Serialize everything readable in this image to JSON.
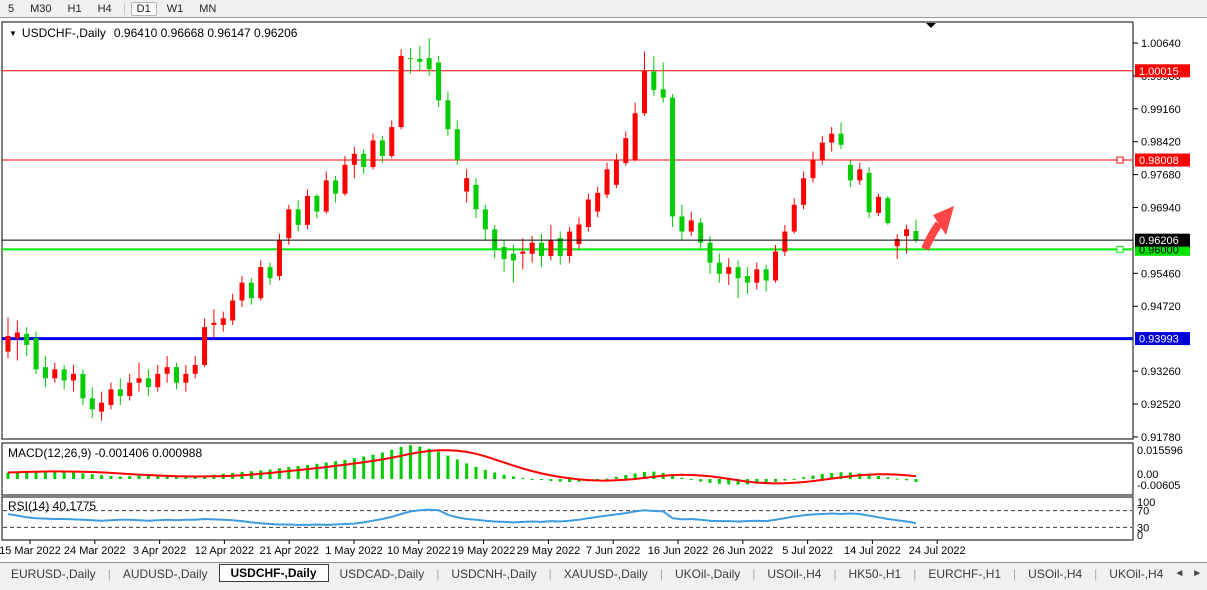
{
  "toolbar": {
    "timeframes": [
      "5",
      "M30",
      "H1",
      "H4",
      "D1",
      "W1",
      "MN"
    ],
    "active_timeframe": "D1"
  },
  "chart": {
    "title": {
      "dropdown_glyph": "▼",
      "symbol": "USDCHF-,Daily",
      "ohlc_values": "0.96410 0.96668 0.96147 0.96206"
    },
    "colors": {
      "bull_candle": "#ff0000",
      "bear_candle": "#00cc00",
      "resistance_line": "#ff0000",
      "support_line": "#00ee00",
      "blue_line": "#0000ee",
      "current_price_line": "#000000",
      "macd_histogram": "#00cc00",
      "macd_signal": "#ff0000",
      "rsi_line": "#3e9bde",
      "arrow_annotation": "#ff4545"
    },
    "price_axis_ticks": [
      1.0064,
      0.999,
      0.9916,
      0.9842,
      0.9768,
      0.9694,
      0.9546,
      0.9472,
      0.9326,
      0.9252,
      0.9178
    ],
    "horizontal_lines": [
      {
        "price": 1.00015,
        "label": "1.00015",
        "color": "#ff0000",
        "width": 1,
        "label_bg": "#ff0000",
        "label_fg": "#ffffff",
        "handle": false
      },
      {
        "price": 0.98008,
        "label": "0.98008",
        "color": "#ff0000",
        "width": 1,
        "label_bg": "#ff0000",
        "label_fg": "#ffffff",
        "handle": true
      },
      {
        "price": 0.96,
        "label": "0.96000",
        "color": "#00ee00",
        "width": 2,
        "label_bg": "#00e400",
        "label_fg": "#000000",
        "handle": true
      },
      {
        "price": 0.93993,
        "label": "0.93993",
        "color": "#0000ee",
        "width": 3,
        "label_bg": "#0000dd",
        "label_fg": "#ffffff",
        "handle": false
      }
    ],
    "current_price": {
      "value": 0.96206,
      "label": "0.96206",
      "label_bg": "#000000",
      "label_fg": "#ffffff"
    }
  },
  "macd_panel": {
    "label": "MACD(12,26,9) -0.001406 0.000988",
    "axis_max": "0.015596",
    "axis_zero": "0.00",
    "axis_min": "-0.00605"
  },
  "rsi_panel": {
    "label": "RSI(14) 40.1775",
    "axis_labels": [
      "100",
      "70",
      "30",
      "0"
    ],
    "levels": [
      70,
      30
    ]
  },
  "date_axis": [
    "15 Mar 2022",
    "24 Mar 2022",
    "3 Apr 2022",
    "12 Apr 2022",
    "21 Apr 2022",
    "1 May 2022",
    "10 May 2022",
    "19 May 2022",
    "29 May 2022",
    "7 Jun 2022",
    "16 Jun 2022",
    "26 Jun 2022",
    "5 Jul 2022",
    "14 Jul 2022",
    "24 Jul 2022"
  ],
  "tab_bar": {
    "tabs": [
      {
        "label": "EURUSD-,Daily",
        "active": false
      },
      {
        "label": "AUDUSD-,Daily",
        "active": false
      },
      {
        "label": "USDCHF-,Daily",
        "active": true
      },
      {
        "label": "USDCAD-,Daily",
        "active": false
      },
      {
        "label": "USDCNH-,Daily",
        "active": false
      },
      {
        "label": "XAUUSD-,Daily",
        "active": false
      },
      {
        "label": "UKOil-,Daily",
        "active": false
      },
      {
        "label": "USOil-,H4",
        "active": false
      },
      {
        "label": "HK50-,H1",
        "active": false
      },
      {
        "label": "EURCHF-,H1",
        "active": false
      },
      {
        "label": "USOil-,H4",
        "active": false
      },
      {
        "label": "UKOil-,H4",
        "active": false
      }
    ],
    "scroll_left_glyph": "◄",
    "scroll_right_glyph": "►"
  },
  "chart_data": {
    "type": "candlestick",
    "symbol": "USDCHF",
    "timeframe": "Daily",
    "x_axis_dates": [
      "15 Mar 2022",
      "24 Mar 2022",
      "3 Apr 2022",
      "12 Apr 2022",
      "21 Apr 2022",
      "1 May 2022",
      "10 May 2022",
      "19 May 2022",
      "29 May 2022",
      "7 Jun 2022",
      "16 Jun 2022",
      "26 Jun 2022",
      "5 Jul 2022",
      "14 Jul 2022",
      "24 Jul 2022"
    ],
    "y_range": [
      0.914,
      1.0085
    ],
    "ohlc": [
      [
        0.937,
        0.9447,
        0.9355,
        0.9405
      ],
      [
        0.94,
        0.944,
        0.935,
        0.9413
      ],
      [
        0.941,
        0.9425,
        0.936,
        0.9385
      ],
      [
        0.94,
        0.9415,
        0.932,
        0.933
      ],
      [
        0.9335,
        0.936,
        0.929,
        0.931
      ],
      [
        0.931,
        0.9345,
        0.93,
        0.933
      ],
      [
        0.933,
        0.934,
        0.9285,
        0.9305
      ],
      [
        0.9305,
        0.934,
        0.928,
        0.932
      ],
      [
        0.932,
        0.933,
        0.925,
        0.9265
      ],
      [
        0.9265,
        0.929,
        0.922,
        0.924
      ],
      [
        0.9235,
        0.928,
        0.9215,
        0.9255
      ],
      [
        0.925,
        0.93,
        0.924,
        0.9285
      ],
      [
        0.9285,
        0.931,
        0.925,
        0.927
      ],
      [
        0.927,
        0.932,
        0.926,
        0.93
      ],
      [
        0.93,
        0.9345,
        0.928,
        0.931
      ],
      [
        0.931,
        0.933,
        0.927,
        0.929
      ],
      [
        0.929,
        0.934,
        0.928,
        0.932
      ],
      [
        0.932,
        0.936,
        0.93,
        0.9335
      ],
      [
        0.9335,
        0.9345,
        0.9285,
        0.93
      ],
      [
        0.93,
        0.934,
        0.928,
        0.932
      ],
      [
        0.932,
        0.936,
        0.931,
        0.934
      ],
      [
        0.934,
        0.9445,
        0.9335,
        0.9425
      ],
      [
        0.943,
        0.9465,
        0.94,
        0.9435
      ],
      [
        0.943,
        0.946,
        0.9415,
        0.9445
      ],
      [
        0.944,
        0.95,
        0.943,
        0.9485
      ],
      [
        0.9485,
        0.954,
        0.947,
        0.9525
      ],
      [
        0.9525,
        0.9535,
        0.9475,
        0.949
      ],
      [
        0.949,
        0.9575,
        0.9485,
        0.956
      ],
      [
        0.956,
        0.957,
        0.952,
        0.9535
      ],
      [
        0.954,
        0.9635,
        0.953,
        0.962
      ],
      [
        0.9625,
        0.97,
        0.961,
        0.969
      ],
      [
        0.969,
        0.971,
        0.964,
        0.9655
      ],
      [
        0.9655,
        0.9735,
        0.9645,
        0.972
      ],
      [
        0.972,
        0.9725,
        0.967,
        0.9685
      ],
      [
        0.9685,
        0.9775,
        0.968,
        0.9755
      ],
      [
        0.9755,
        0.9765,
        0.9705,
        0.9725
      ],
      [
        0.9725,
        0.981,
        0.972,
        0.979
      ],
      [
        0.979,
        0.983,
        0.976,
        0.9815
      ],
      [
        0.9815,
        0.9825,
        0.977,
        0.9785
      ],
      [
        0.9785,
        0.986,
        0.978,
        0.9845
      ],
      [
        0.9845,
        0.9855,
        0.9795,
        0.981
      ],
      [
        0.981,
        0.989,
        0.9805,
        0.9875
      ],
      [
        0.9875,
        1.005,
        0.987,
        1.0035
      ],
      [
        1.003,
        1.0052,
        0.9995,
        1.0028
      ],
      [
        1.0028,
        1.0058,
        1.0002,
        1.0022
      ],
      [
        1.003,
        1.0075,
        0.999,
        1.0005
      ],
      [
        1.002,
        1.0035,
        0.992,
        0.9935
      ],
      [
        0.9935,
        0.9955,
        0.9855,
        0.987
      ],
      [
        0.987,
        0.989,
        0.979,
        0.9801
      ],
      [
        0.973,
        0.978,
        0.9705,
        0.976
      ],
      [
        0.9745,
        0.976,
        0.967,
        0.969
      ],
      [
        0.969,
        0.97,
        0.962,
        0.9645
      ],
      [
        0.9645,
        0.9655,
        0.958,
        0.96
      ],
      [
        0.9605,
        0.962,
        0.955,
        0.9578
      ],
      [
        0.959,
        0.961,
        0.9525,
        0.9575
      ],
      [
        0.959,
        0.9625,
        0.9555,
        0.9595
      ],
      [
        0.959,
        0.963,
        0.957,
        0.9615
      ],
      [
        0.9615,
        0.9635,
        0.956,
        0.9585
      ],
      [
        0.9585,
        0.9655,
        0.9575,
        0.962
      ],
      [
        0.9625,
        0.964,
        0.9565,
        0.9585
      ],
      [
        0.9585,
        0.965,
        0.957,
        0.964
      ],
      [
        0.9612,
        0.9672,
        0.96,
        0.9656
      ],
      [
        0.965,
        0.9725,
        0.964,
        0.9712
      ],
      [
        0.9685,
        0.974,
        0.9672,
        0.9727
      ],
      [
        0.9723,
        0.9795,
        0.9715,
        0.978
      ],
      [
        0.9745,
        0.9815,
        0.9738,
        0.9801
      ],
      [
        0.9794,
        0.9865,
        0.9788,
        0.985
      ],
      [
        0.9801,
        0.993,
        0.9798,
        0.9906
      ],
      [
        0.9906,
        1.0045,
        0.99,
        1.0002
      ],
      [
        1.0,
        1.0034,
        0.9945,
        0.9958
      ],
      [
        0.996,
        1.002,
        0.993,
        0.9941
      ],
      [
        0.9941,
        0.995,
        0.965,
        0.9674
      ],
      [
        0.9674,
        0.97,
        0.962,
        0.964
      ],
      [
        0.964,
        0.9685,
        0.963,
        0.9665
      ],
      [
        0.966,
        0.967,
        0.96,
        0.9615
      ],
      [
        0.9615,
        0.963,
        0.9545,
        0.957
      ],
      [
        0.957,
        0.959,
        0.9525,
        0.9545
      ],
      [
        0.9545,
        0.958,
        0.952,
        0.956
      ],
      [
        0.956,
        0.9575,
        0.949,
        0.9535
      ],
      [
        0.954,
        0.956,
        0.95,
        0.9525
      ],
      [
        0.9525,
        0.957,
        0.951,
        0.9555
      ],
      [
        0.9555,
        0.9565,
        0.9505,
        0.953
      ],
      [
        0.953,
        0.961,
        0.9525,
        0.9595
      ],
      [
        0.9595,
        0.9655,
        0.9585,
        0.964
      ],
      [
        0.964,
        0.9715,
        0.9635,
        0.97
      ],
      [
        0.97,
        0.9775,
        0.969,
        0.976
      ],
      [
        0.976,
        0.982,
        0.975,
        0.98
      ],
      [
        0.98,
        0.9855,
        0.979,
        0.984
      ],
      [
        0.984,
        0.9875,
        0.982,
        0.986
      ],
      [
        0.986,
        0.9885,
        0.9825,
        0.9835
      ],
      [
        0.979,
        0.98,
        0.974,
        0.9755
      ],
      [
        0.9755,
        0.9795,
        0.9745,
        0.978
      ],
      [
        0.9772,
        0.9785,
        0.967,
        0.9683
      ],
      [
        0.9682,
        0.9725,
        0.9675,
        0.9718
      ],
      [
        0.9715,
        0.972,
        0.9655,
        0.9659
      ],
      [
        0.9607,
        0.9634,
        0.9578,
        0.9623
      ],
      [
        0.963,
        0.9655,
        0.959,
        0.9645
      ],
      [
        0.9641,
        0.96668,
        0.96147,
        0.96206
      ]
    ],
    "macd_histogram": [
      0.003,
      0.0033,
      0.0035,
      0.0037,
      0.0038,
      0.0036,
      0.0033,
      0.003,
      0.0026,
      0.0022,
      0.0018,
      0.0014,
      0.0012,
      0.0013,
      0.0015,
      0.0014,
      0.0012,
      0.001,
      0.0008,
      0.0008,
      0.001,
      0.0016,
      0.002,
      0.0024,
      0.0028,
      0.0033,
      0.0036,
      0.004,
      0.0044,
      0.005,
      0.0056,
      0.006,
      0.0065,
      0.007,
      0.0076,
      0.0082,
      0.0088,
      0.0096,
      0.0104,
      0.0112,
      0.0122,
      0.0135,
      0.0148,
      0.0156,
      0.015,
      0.014,
      0.0126,
      0.0108,
      0.009,
      0.0072,
      0.0056,
      0.0042,
      0.003,
      0.002,
      0.0012,
      0.0005,
      0.0,
      -0.0005,
      -0.0009,
      -0.0012,
      -0.0014,
      -0.0013,
      -0.001,
      -0.0005,
      0.0002,
      0.001,
      0.0018,
      0.0026,
      0.0032,
      0.0034,
      0.0028,
      0.0018,
      0.0006,
      -0.0004,
      -0.0012,
      -0.0018,
      -0.0022,
      -0.0025,
      -0.0026,
      -0.0025,
      -0.0022,
      -0.0018,
      -0.0013,
      -0.0007,
      0.0,
      0.0008,
      0.0016,
      0.0023,
      0.0028,
      0.0031,
      0.003,
      0.0026,
      0.002,
      0.0014,
      0.0008,
      0.0002,
      -0.0006,
      -0.0014
    ],
    "macd_current": {
      "main": -0.001406,
      "signal": 0.000988
    },
    "rsi": [
      62,
      58,
      54,
      52,
      51,
      50,
      50,
      49,
      48,
      47,
      46,
      47,
      48,
      48,
      47,
      46,
      47,
      48,
      47,
      48,
      48,
      50,
      49,
      48,
      47,
      45,
      42,
      40,
      38,
      37,
      37,
      36,
      36,
      37,
      36,
      37,
      38,
      39,
      42,
      46,
      50,
      55,
      62,
      68,
      71,
      72,
      71,
      60,
      54,
      50,
      48,
      46,
      44,
      43,
      42,
      43,
      44,
      43,
      45,
      44,
      46,
      48,
      52,
      55,
      58,
      61,
      64,
      68,
      71,
      69,
      68,
      52,
      49,
      50,
      48,
      46,
      45,
      45,
      44,
      45,
      46,
      45,
      48,
      52,
      56,
      59,
      61,
      62,
      63,
      62,
      63,
      62,
      58,
      54,
      50,
      47,
      44,
      40.18
    ],
    "rsi_current": 40.1775
  }
}
